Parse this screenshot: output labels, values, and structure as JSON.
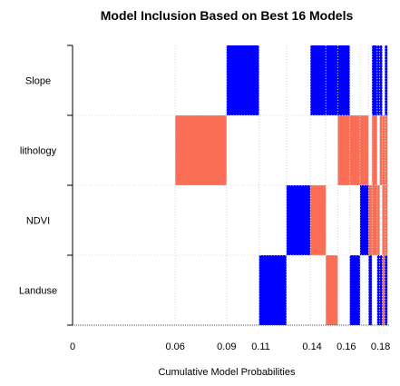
{
  "chart_data": {
    "type": "heatmap",
    "title": "Model Inclusion Based on Best  16  Models",
    "xlabel": "Cumulative Model Probabilities",
    "ylabel": "",
    "variables": [
      "Slope",
      "lithology",
      "NDVI",
      "Landuse"
    ],
    "x_tick_labels": [
      "0",
      "0.06",
      "0.09",
      "0.11",
      "0.14",
      "0.16",
      "0.18"
    ],
    "x_range": [
      0,
      0.185
    ],
    "grid": true,
    "legend": "none",
    "colors": {
      "positive": "#0000ff",
      "negative": "#fa6e55",
      "excluded": "#ffffff",
      "grid": "#d3d3d3",
      "separator": "#dcdcdc"
    },
    "models": [
      {
        "start": 0.0,
        "end": 0.06,
        "Slope": 0,
        "lithology": 0,
        "NDVI": 0,
        "Landuse": 0
      },
      {
        "start": 0.06,
        "end": 0.09,
        "Slope": 0,
        "lithology": -1,
        "NDVI": 0,
        "Landuse": 0
      },
      {
        "start": 0.09,
        "end": 0.109,
        "Slope": 1,
        "lithology": 0,
        "NDVI": 0,
        "Landuse": 0
      },
      {
        "start": 0.109,
        "end": 0.125,
        "Slope": 0,
        "lithology": 0,
        "NDVI": 0,
        "Landuse": 1
      },
      {
        "start": 0.125,
        "end": 0.139,
        "Slope": 0,
        "lithology": 0,
        "NDVI": 1,
        "Landuse": 0
      },
      {
        "start": 0.139,
        "end": 0.148,
        "Slope": 1,
        "lithology": 0,
        "NDVI": -1,
        "Landuse": 0
      },
      {
        "start": 0.148,
        "end": 0.155,
        "Slope": 1,
        "lithology": 0,
        "NDVI": 0,
        "Landuse": -1
      },
      {
        "start": 0.155,
        "end": 0.162,
        "Slope": 1,
        "lithology": -1,
        "NDVI": 0,
        "Landuse": 0
      },
      {
        "start": 0.162,
        "end": 0.168,
        "Slope": 0,
        "lithology": -1,
        "NDVI": 0,
        "Landuse": 1
      },
      {
        "start": 0.168,
        "end": 0.173,
        "Slope": 0,
        "lithology": -1,
        "NDVI": 1,
        "Landuse": 0
      },
      {
        "start": 0.173,
        "end": 0.175,
        "Slope": 0,
        "lithology": 0,
        "NDVI": -1,
        "Landuse": 1
      },
      {
        "start": 0.175,
        "end": 0.178,
        "Slope": 1,
        "lithology": -1,
        "NDVI": -1,
        "Landuse": 0
      },
      {
        "start": 0.178,
        "end": 0.1795,
        "Slope": 1,
        "lithology": 0,
        "NDVI": -1,
        "Landuse": 1
      },
      {
        "start": 0.1795,
        "end": 0.181,
        "Slope": 1,
        "lithology": -1,
        "NDVI": 0,
        "Landuse": 1
      },
      {
        "start": 0.181,
        "end": 0.1825,
        "Slope": 0,
        "lithology": -1,
        "NDVI": -1,
        "Landuse": -1
      },
      {
        "start": 0.1825,
        "end": 0.184,
        "Slope": 1,
        "lithology": -1,
        "NDVI": -1,
        "Landuse": 1
      }
    ]
  }
}
